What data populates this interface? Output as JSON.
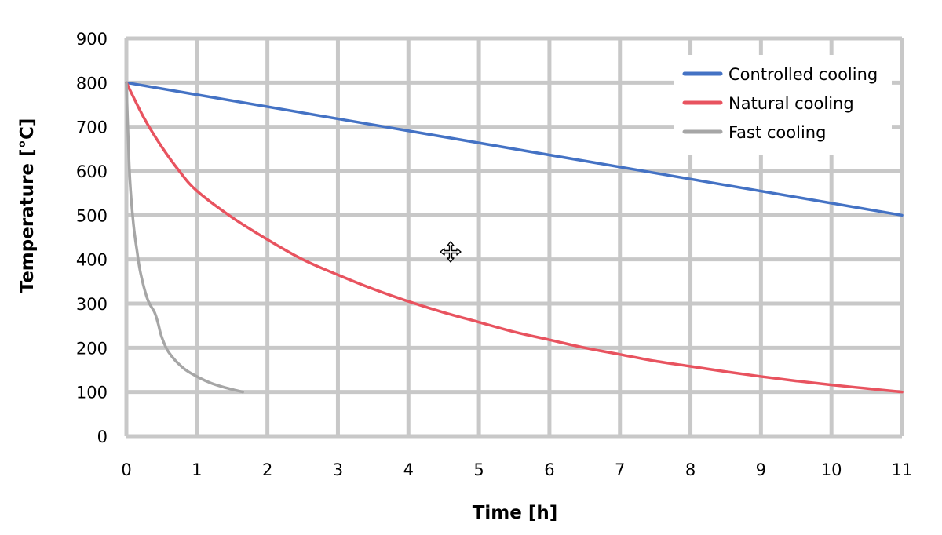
{
  "chart_data": {
    "type": "line",
    "xlabel": "Time [h]",
    "ylabel": "Temperature [°C]",
    "xlim": [
      0,
      11
    ],
    "ylim": [
      0,
      900
    ],
    "x_ticks": [
      0,
      1,
      2,
      3,
      4,
      5,
      6,
      7,
      8,
      9,
      10,
      11
    ],
    "y_ticks": [
      0,
      100,
      200,
      300,
      400,
      500,
      600,
      700,
      800,
      900
    ],
    "grid": true,
    "legend_position": "top-right",
    "series": [
      {
        "name": "Controlled cooling",
        "color": "#4472c4",
        "x": [
          0,
          11
        ],
        "y": [
          800,
          500
        ]
      },
      {
        "name": "Natural cooling",
        "color": "#e8535f",
        "x": [
          0,
          0.25,
          0.5,
          0.75,
          1,
          1.5,
          2,
          2.5,
          3,
          3.5,
          4,
          4.5,
          5,
          5.5,
          6,
          6.5,
          7,
          7.5,
          8,
          8.5,
          9,
          9.5,
          10,
          10.5,
          11
        ],
        "y": [
          800,
          720,
          655,
          600,
          555,
          495,
          445,
          400,
          365,
          333,
          305,
          280,
          258,
          236,
          218,
          200,
          185,
          170,
          158,
          146,
          135,
          125,
          116,
          108,
          100
        ]
      },
      {
        "name": "Fast cooling",
        "color": "#a6a6a6",
        "x": [
          0,
          0.02,
          0.05,
          0.1,
          0.15,
          0.2,
          0.3,
          0.4,
          0.45,
          0.5,
          0.6,
          0.8,
          1.0,
          1.2,
          1.4,
          1.65
        ],
        "y": [
          800,
          700,
          580,
          480,
          420,
          370,
          310,
          280,
          255,
          225,
          190,
          155,
          135,
          120,
          110,
          100
        ]
      }
    ]
  }
}
